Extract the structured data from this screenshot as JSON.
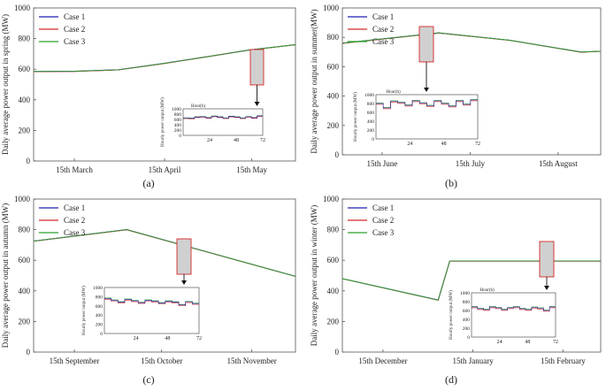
{
  "chart_data": [
    {
      "type": "line",
      "panel_label": "(a)",
      "ylabel": "Daily average power output in spring (MW)",
      "ylim": [
        0,
        1000
      ],
      "yticks": [
        0,
        200,
        400,
        600,
        800,
        1000
      ],
      "xticks": [
        "15th March",
        "15th April",
        "15th May"
      ],
      "legend": [
        "Case 1",
        "Case 2",
        "Case 3"
      ],
      "legend_position": "top-left",
      "series": [
        {
          "name": "Case 1",
          "color": "#1f1fb4",
          "values": [
            [
              1,
              585
            ],
            [
              15,
              586
            ],
            [
              30,
              596
            ],
            [
              45,
              635
            ],
            [
              60,
              680
            ],
            [
              75,
              725
            ],
            [
              91,
              760
            ]
          ]
        },
        {
          "name": "Case 2",
          "color": "#d62728",
          "values": [
            [
              1,
              584
            ],
            [
              15,
              585
            ],
            [
              30,
              595
            ],
            [
              45,
              634
            ],
            [
              60,
              679
            ],
            [
              75,
              724
            ],
            [
              91,
              759
            ]
          ]
        },
        {
          "name": "Case 3",
          "color": "#2ca02c",
          "values": [
            [
              1,
              585
            ],
            [
              15,
              586
            ],
            [
              30,
              596
            ],
            [
              45,
              635
            ],
            [
              60,
              680
            ],
            [
              75,
              725
            ],
            [
              91,
              760
            ]
          ]
        }
      ],
      "highlight_day": 76,
      "inset": {
        "xlabel": "Hour(h)",
        "ylabel": "Hourly power output (MW)",
        "xticks": [
          24,
          48,
          72
        ],
        "ylim": [
          0,
          1000
        ],
        "yticks": [
          0,
          200,
          400,
          600,
          800,
          1000
        ],
        "values": [
          650,
          640,
          690,
          700,
          660,
          720,
          690,
          650,
          710,
          690,
          650,
          700,
          660,
          730
        ]
      }
    },
    {
      "type": "line",
      "panel_label": "(b)",
      "ylabel": "Daily average power output in summer(MW)",
      "ylim": [
        0,
        1000
      ],
      "yticks": [
        0,
        200,
        400,
        600,
        800,
        1000
      ],
      "xticks": [
        "15th June",
        "15th July",
        "15th August"
      ],
      "legend": [
        "Case 1",
        "Case 2",
        "Case 3"
      ],
      "legend_position": "top-left",
      "series": [
        {
          "name": "Case 1",
          "color": "#1f1fb4",
          "values": [
            [
              1,
              760
            ],
            [
              35,
              830
            ],
            [
              60,
              780
            ],
            [
              85,
              700
            ],
            [
              92,
              705
            ]
          ]
        },
        {
          "name": "Case 2",
          "color": "#d62728",
          "values": [
            [
              1,
              759
            ],
            [
              35,
              829
            ],
            [
              60,
              779
            ],
            [
              85,
              699
            ],
            [
              92,
              704
            ]
          ]
        },
        {
          "name": "Case 3",
          "color": "#2ca02c",
          "values": [
            [
              1,
              760
            ],
            [
              35,
              830
            ],
            [
              60,
              780
            ],
            [
              85,
              700
            ],
            [
              92,
              705
            ]
          ]
        }
      ],
      "highlight_day": 29,
      "inset": {
        "xlabel": "Hour(h)",
        "ylabel": "Hourly power output (MW)",
        "xticks": [
          24,
          48,
          72
        ],
        "ylim": [
          0,
          1000
        ],
        "yticks": [
          0,
          200,
          400,
          600,
          800,
          1000
        ],
        "values": [
          800,
          700,
          850,
          820,
          760,
          860,
          810,
          750,
          860,
          800,
          740,
          860,
          780,
          880
        ]
      }
    },
    {
      "type": "line",
      "panel_label": "(c)",
      "ylabel": "Daily average power output in autumn (MW)",
      "ylim": [
        0,
        1000
      ],
      "yticks": [
        0,
        200,
        400,
        600,
        800,
        1000
      ],
      "xticks": [
        "15th September",
        "15th October",
        "15th November"
      ],
      "legend": [
        "Case 1",
        "Case 2",
        "Case 3"
      ],
      "legend_position": "top-left",
      "series": [
        {
          "name": "Case 1",
          "color": "#1f1fb4",
          "values": [
            [
              1,
              725
            ],
            [
              33,
              800
            ],
            [
              91,
              495
            ]
          ]
        },
        {
          "name": "Case 2",
          "color": "#d62728",
          "values": [
            [
              1,
              724
            ],
            [
              33,
              799
            ],
            [
              91,
              494
            ]
          ]
        },
        {
          "name": "Case 3",
          "color": "#2ca02c",
          "values": [
            [
              1,
              725
            ],
            [
              33,
              800
            ],
            [
              91,
              495
            ]
          ]
        }
      ],
      "highlight_day": 48,
      "inset": {
        "xlabel": "",
        "ylabel": "Hourly power output (MW)",
        "xticks": [
          24,
          48,
          72
        ],
        "ylim": [
          0,
          1000
        ],
        "yticks": [
          0,
          200,
          400,
          600,
          800,
          1000
        ],
        "values": [
          760,
          720,
          680,
          740,
          710,
          670,
          720,
          700,
          660,
          700,
          680,
          620,
          690,
          650
        ]
      }
    },
    {
      "type": "line",
      "panel_label": "(d)",
      "ylabel": "Daily average power output in winter (MW)",
      "ylim": [
        0,
        1000
      ],
      "yticks": [
        0,
        200,
        400,
        600,
        800,
        1000
      ],
      "xticks": [
        "15th December",
        "15th January",
        "15th February"
      ],
      "legend": [
        "Case 1",
        "Case 2",
        "Case 3"
      ],
      "legend_position": "top-left",
      "series": [
        {
          "name": "Case 1",
          "color": "#1f1fb4",
          "values": [
            [
              1,
              480
            ],
            [
              34,
              340
            ],
            [
              38,
              595
            ],
            [
              90,
              595
            ]
          ]
        },
        {
          "name": "Case 2",
          "color": "#d62728",
          "values": [
            [
              1,
              479
            ],
            [
              34,
              339
            ],
            [
              38,
              594
            ],
            [
              90,
              594
            ]
          ]
        },
        {
          "name": "Case 3",
          "color": "#2ca02c",
          "values": [
            [
              1,
              480
            ],
            [
              34,
              340
            ],
            [
              38,
              596
            ],
            [
              90,
              596
            ]
          ]
        }
      ],
      "highlight_day": 79,
      "inset": {
        "xlabel": "Hour(h)",
        "ylabel": "Hourly power output (MW)",
        "xticks": [
          24,
          48,
          72
        ],
        "ylim": [
          0,
          1000
        ],
        "yticks": [
          0,
          200,
          400,
          600,
          800,
          1000
        ],
        "values": [
          680,
          640,
          620,
          680,
          660,
          620,
          660,
          680,
          640,
          620,
          670,
          650,
          600,
          680
        ]
      }
    }
  ]
}
